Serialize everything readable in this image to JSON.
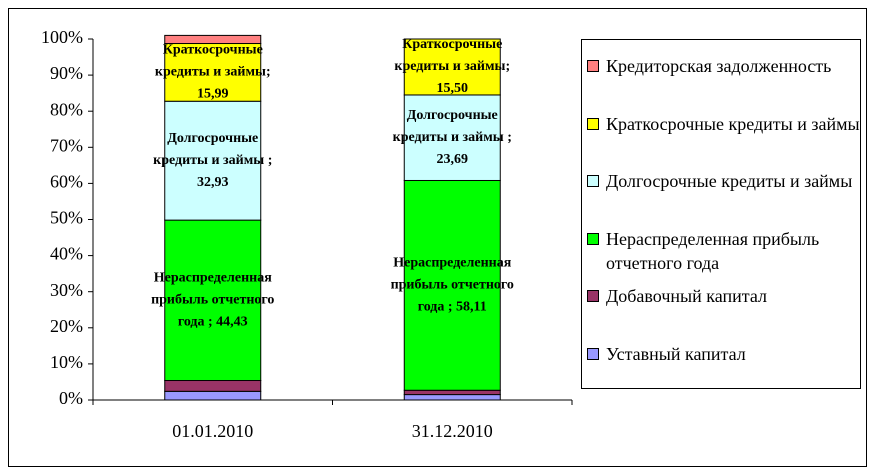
{
  "chart_data": {
    "type": "stacked_bar",
    "categories": [
      "01.01.2010",
      "31.12.2010"
    ],
    "ylim": [
      0,
      100
    ],
    "yticks": [
      {
        "value": 0,
        "label": "0%"
      },
      {
        "value": 10,
        "label": "10%"
      },
      {
        "value": 20,
        "label": "20%"
      },
      {
        "value": 30,
        "label": "30%"
      },
      {
        "value": 40,
        "label": "40%"
      },
      {
        "value": 50,
        "label": "50%"
      },
      {
        "value": 60,
        "label": "60%"
      },
      {
        "value": 70,
        "label": "70%"
      },
      {
        "value": 80,
        "label": "80%"
      },
      {
        "value": 90,
        "label": "90%"
      },
      {
        "value": 100,
        "label": "100%"
      }
    ],
    "series": [
      {
        "name": "Уставный капитал",
        "color": "#9999ff",
        "values": [
          2.4,
          1.5
        ]
      },
      {
        "name": "Добавочный капитал",
        "color": "#993366",
        "values": [
          3.0,
          1.2
        ]
      },
      {
        "name": "Нераспределенная прибыль отчетного года",
        "color": "#00ff00",
        "values": [
          44.43,
          58.11
        ],
        "value_labels": [
          [
            "Нераспределенная",
            "прибыль отчетного",
            "года ; 44,43"
          ],
          [
            "Нераспределенная",
            "прибыль отчетного",
            "года ; 58,11"
          ]
        ]
      },
      {
        "name": "Долгосрочные кредиты и займы",
        "color": "#ccffff",
        "values": [
          32.93,
          23.69
        ],
        "value_labels": [
          [
            "Долгосрочные",
            "кредиты и займы ;",
            "32,93"
          ],
          [
            "Долгосрочные",
            "кредиты и займы ;",
            "23,69"
          ]
        ]
      },
      {
        "name": "Краткосрочные кредиты и займы",
        "color": "#ffff00",
        "values": [
          15.99,
          15.5
        ],
        "value_labels": [
          [
            "Краткосрочные",
            "кредиты и займы;",
            "15,99"
          ],
          [
            "Краткосрочные",
            "кредиты и займы;",
            "15,50"
          ]
        ]
      },
      {
        "name": "Кредиторская задолженность",
        "color": "#ff8080",
        "values": [
          2.25,
          0
        ]
      }
    ]
  }
}
